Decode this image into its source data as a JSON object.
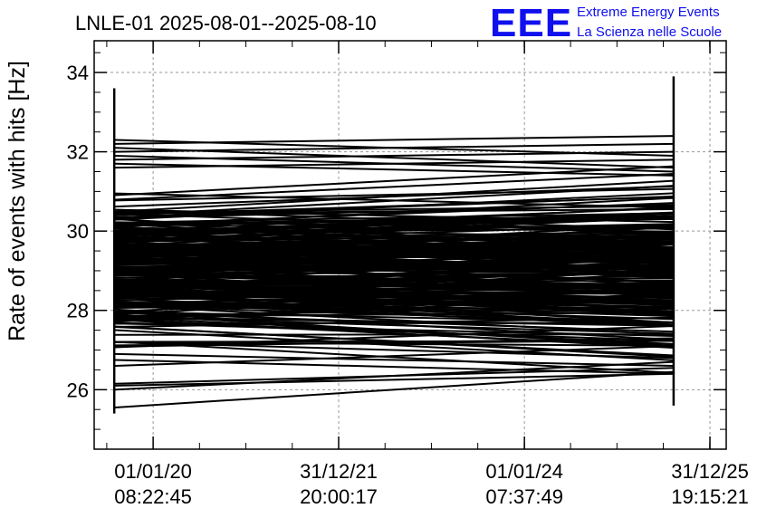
{
  "header": {
    "title": "LNLE-01 2025-08-01--2025-08-10",
    "logo": {
      "mark": "EEE",
      "line1": "Extreme Energy Events",
      "line2": "La Scienza nelle Scuole",
      "color": "#1010ee"
    }
  },
  "chart_data": {
    "type": "line",
    "title": "LNLE-01 2025-08-01--2025-08-10",
    "xlabel": "",
    "ylabel": "Rate of events with hits [Hz]",
    "ylim": [
      24.5,
      34.8
    ],
    "xlim": [
      "2019-05-14",
      "2026-03-05"
    ],
    "y_ticks": [
      "26",
      "28",
      "30",
      "32",
      "34"
    ],
    "x_ticks": [
      {
        "date": "01/01/20",
        "time": "08:22:45"
      },
      {
        "date": "31/12/21",
        "time": "20:00:17"
      },
      {
        "date": "01/01/24",
        "time": "07:37:49"
      },
      {
        "date": "31/12/25",
        "time": "19:15:21"
      }
    ],
    "x_ticks_iso": [
      "2020-01-01",
      "2021-12-31",
      "2024-01-01",
      "2025-12-31"
    ],
    "grid": true,
    "line_color": "#000000",
    "x_segment": [
      "2019-08-01",
      "2025-08-10"
    ],
    "series_summary": {
      "start_range": [
        25.4,
        33.6
      ],
      "end_range": [
        25.6,
        33.9
      ],
      "dense_band": [
        26.8,
        31.3
      ],
      "segments": [
        [
          26.1,
          26.4
        ],
        [
          26.15,
          26.55
        ],
        [
          25.55,
          26.45
        ],
        [
          26.0,
          26.7
        ],
        [
          26.75,
          26.4
        ],
        [
          26.9,
          26.6
        ],
        [
          27.2,
          26.8
        ],
        [
          26.6,
          27.1
        ],
        [
          32.3,
          31.9
        ],
        [
          32.2,
          32.4
        ],
        [
          32.1,
          31.6
        ],
        [
          32.0,
          32.2
        ],
        [
          31.9,
          31.5
        ],
        [
          31.8,
          32.0
        ],
        [
          31.7,
          31.4
        ],
        [
          31.6,
          31.8
        ]
      ]
    }
  }
}
